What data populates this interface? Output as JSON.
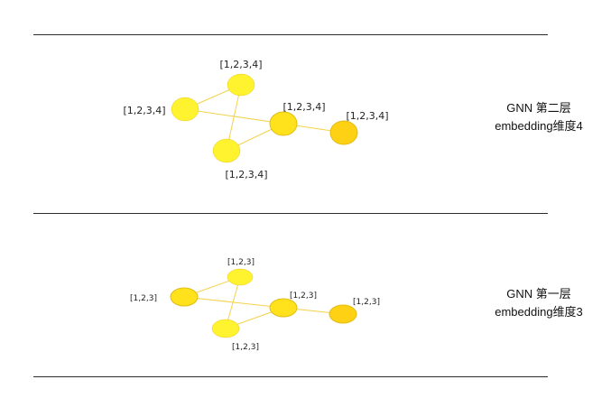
{
  "colors": {
    "edge": "#f3d24a",
    "node_light": "#fff22e",
    "node_mid": "#ffe21c",
    "node_dark": "#ffd115",
    "node_stroke": "#e2bc15",
    "divider": "#2b2b2b"
  },
  "layers": [
    {
      "id": "layer2",
      "title": "GNN 第二层",
      "subtitle": "embedding维度4",
      "nodes": [
        {
          "id": "n1",
          "label": "[1,2,3,4]",
          "tone": "node_light"
        },
        {
          "id": "n2",
          "label": "[1,2,3,4]",
          "tone": "node_light"
        },
        {
          "id": "n3",
          "label": "[1,2,3,4]",
          "tone": "node_light"
        },
        {
          "id": "n4",
          "label": "[1,2,3,4]",
          "tone": "node_mid"
        },
        {
          "id": "n5",
          "label": "[1,2,3,4]",
          "tone": "node_dark"
        }
      ],
      "edges": [
        [
          "n1",
          "n2"
        ],
        [
          "n2",
          "n4"
        ],
        [
          "n1",
          "n3"
        ],
        [
          "n3",
          "n4"
        ],
        [
          "n4",
          "n5"
        ]
      ]
    },
    {
      "id": "layer1",
      "title": "GNN 第一层",
      "subtitle": "embedding维度3",
      "nodes": [
        {
          "id": "m1",
          "label": "[1,2,3]",
          "tone": "node_light"
        },
        {
          "id": "m2",
          "label": "[1,2,3]",
          "tone": "node_mid"
        },
        {
          "id": "m3",
          "label": "[1,2,3]",
          "tone": "node_light"
        },
        {
          "id": "m4",
          "label": "[1,2,3]",
          "tone": "node_mid"
        },
        {
          "id": "m5",
          "label": "[1,2,3]",
          "tone": "node_dark"
        }
      ],
      "edges": [
        [
          "m1",
          "m2"
        ],
        [
          "m2",
          "m4"
        ],
        [
          "m1",
          "m3"
        ],
        [
          "m3",
          "m4"
        ],
        [
          "m4",
          "m5"
        ]
      ]
    }
  ]
}
